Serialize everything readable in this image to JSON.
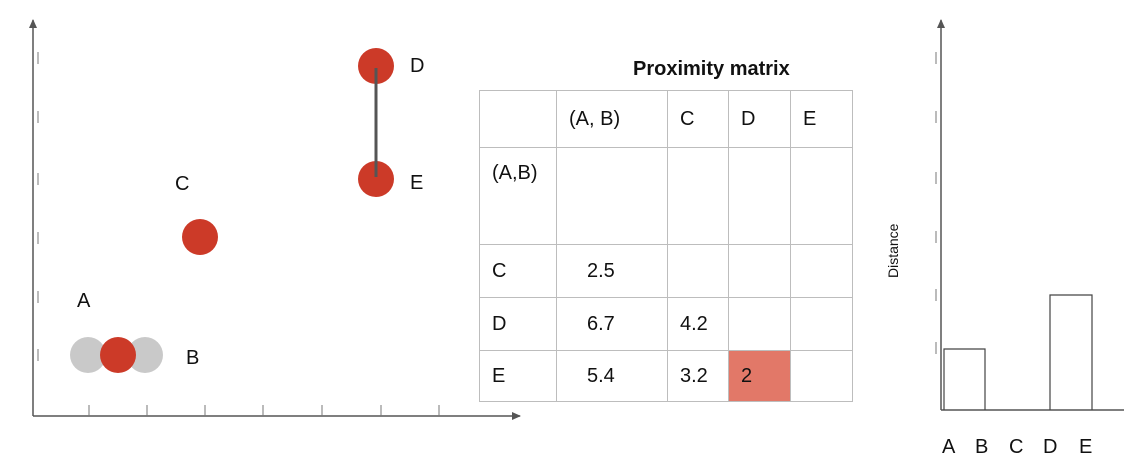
{
  "scatter": {
    "points": [
      {
        "name": "A"
      },
      {
        "name": "B"
      },
      {
        "name": "C"
      },
      {
        "name": "D"
      },
      {
        "name": "E"
      }
    ],
    "merged_pair": [
      "D",
      "E"
    ]
  },
  "matrix": {
    "title": "Proximity matrix",
    "headers": [
      "",
      "(A, B)",
      "C",
      "D",
      "E"
    ],
    "rows": [
      {
        "label": "(A,B)",
        "cells": [
          "",
          "",
          "",
          ""
        ]
      },
      {
        "label": "C",
        "cells": [
          "2.5",
          "",
          "",
          ""
        ]
      },
      {
        "label": "D",
        "cells": [
          "6.7",
          "4.2",
          "",
          ""
        ]
      },
      {
        "label": "E",
        "cells": [
          "5.4",
          "3.2",
          "2",
          ""
        ]
      }
    ],
    "highlight": {
      "row": "E",
      "col": "D",
      "value": "2"
    }
  },
  "dendrogram": {
    "ylabel": "Distance",
    "leaves": [
      "A",
      "B",
      "C",
      "D",
      "E"
    ]
  },
  "colors": {
    "point": "#cc3a28",
    "ghost_point": "#c9c9c9",
    "highlight_cell": "#e27868",
    "axis": "#555555"
  }
}
